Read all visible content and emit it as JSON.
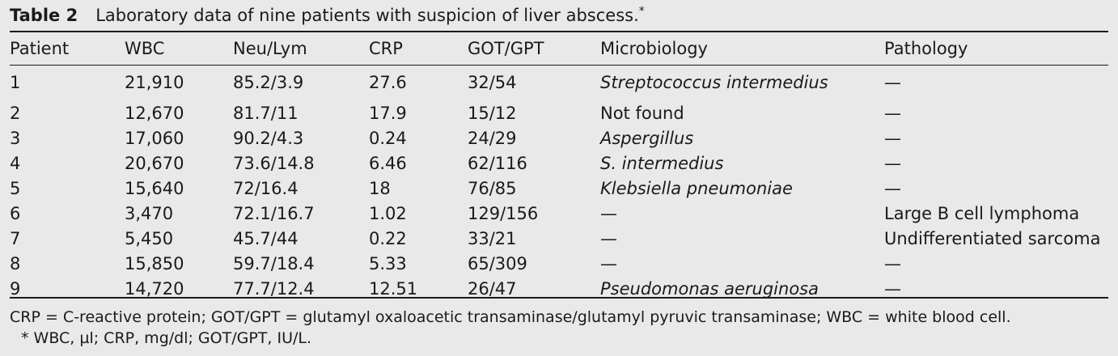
{
  "caption": {
    "label": "Table 2",
    "text": "Laboratory data of nine patients with suspicion of liver abscess.",
    "marker": "*"
  },
  "columns": [
    "Patient",
    "WBC",
    "Neu/Lym",
    "CRP",
    "GOT/GPT",
    "Microbiology",
    "Pathology"
  ],
  "rows": [
    {
      "patient": "1",
      "wbc": "21,910",
      "neu_lym": "85.2/3.9",
      "crp": "27.6",
      "got_gpt": "32/54",
      "microbiology": "Streptococcus intermedius",
      "micro_italic": true,
      "pathology": "—"
    },
    {
      "patient": "2",
      "wbc": "12,670",
      "neu_lym": "81.7/11",
      "crp": "17.9",
      "got_gpt": "15/12",
      "microbiology": "Not found",
      "micro_italic": false,
      "pathology": "—"
    },
    {
      "patient": "3",
      "wbc": "17,060",
      "neu_lym": "90.2/4.3",
      "crp": "0.24",
      "got_gpt": "24/29",
      "microbiology": "Aspergillus",
      "micro_italic": true,
      "pathology": "—"
    },
    {
      "patient": "4",
      "wbc": "20,670",
      "neu_lym": "73.6/14.8",
      "crp": "6.46",
      "got_gpt": "62/116",
      "microbiology": "S. intermedius",
      "micro_italic": true,
      "pathology": "—"
    },
    {
      "patient": "5",
      "wbc": "15,640",
      "neu_lym": "72/16.4",
      "crp": "18",
      "got_gpt": "76/85",
      "microbiology": "Klebsiella pneumoniae",
      "micro_italic": true,
      "pathology": "—"
    },
    {
      "patient": "6",
      "wbc": "3,470",
      "neu_lym": "72.1/16.7",
      "crp": "1.02",
      "got_gpt": "129/156",
      "microbiology": "—",
      "micro_italic": false,
      "pathology": "Large B cell lymphoma"
    },
    {
      "patient": "7",
      "wbc": "5,450",
      "neu_lym": "45.7/44",
      "crp": "0.22",
      "got_gpt": "33/21",
      "microbiology": "—",
      "micro_italic": false,
      "pathology": "Undifferentiated sarcoma"
    },
    {
      "patient": "8",
      "wbc": "15,850",
      "neu_lym": "59.7/18.4",
      "crp": "5.33",
      "got_gpt": "65/309",
      "microbiology": "—",
      "micro_italic": false,
      "pathology": "—"
    },
    {
      "patient": "9",
      "wbc": "14,720",
      "neu_lym": "77.7/12.4",
      "crp": "12.51",
      "got_gpt": "26/47",
      "microbiology": "Pseudomonas aeruginosa",
      "micro_italic": true,
      "pathology": "—"
    }
  ],
  "footnotes": {
    "abbreviations": "CRP = C-reactive protein; GOT/GPT = glutamyl oxaloacetic transaminase/glutamyl pyruvic transaminase; WBC = white blood cell.",
    "units": "* WBC, µl; CRP, mg/dl; GOT/GPT, IU/L."
  }
}
